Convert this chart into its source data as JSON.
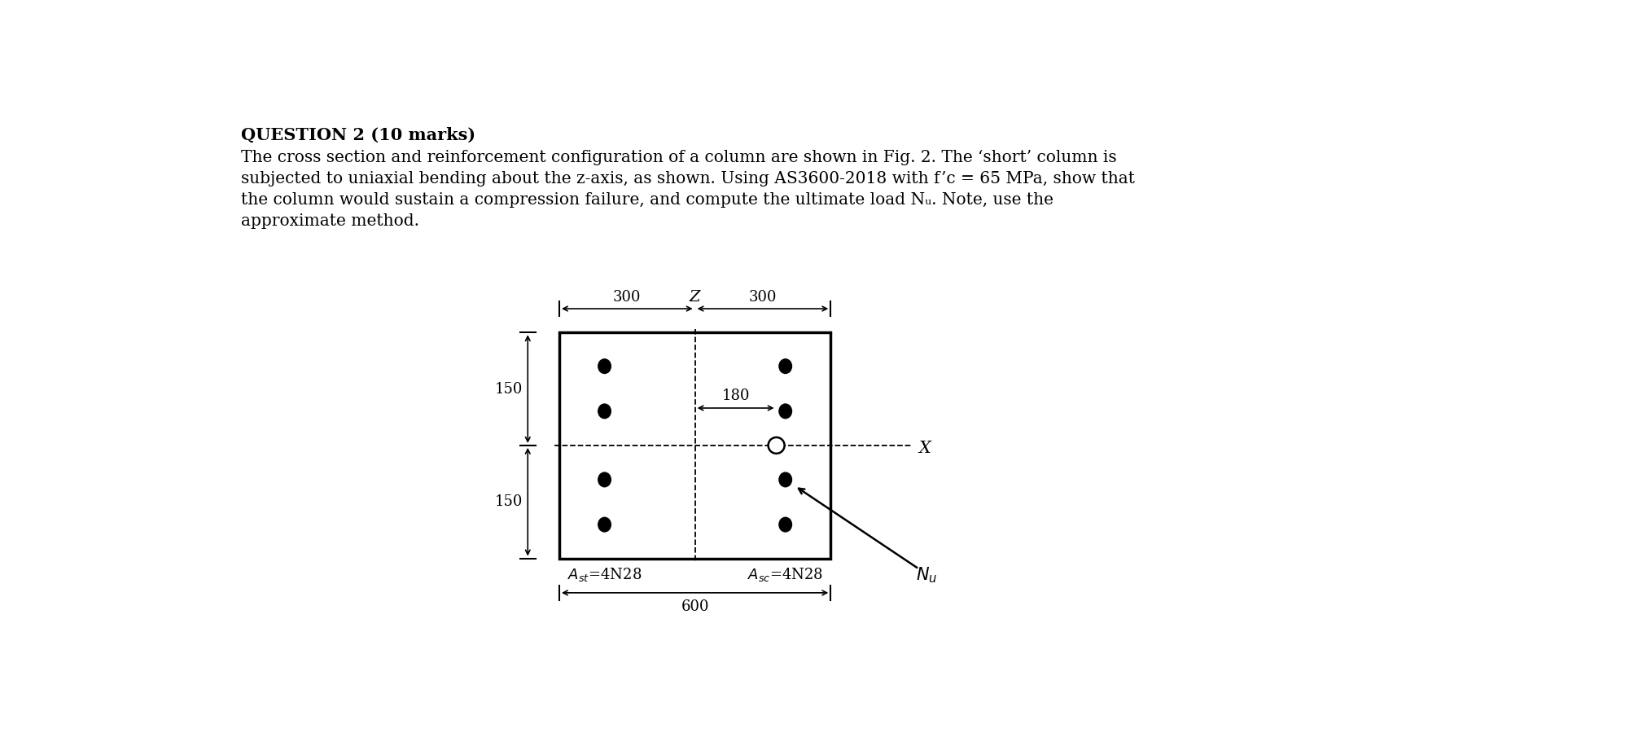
{
  "title_bold": "QUESTION 2 (10 marks)",
  "line1": "The cross section and reinforcement configuration of a column are shown in Fig. 2. The ‘short’ column is",
  "line2": "subjected to uniaxial bending about the z-axis, as shown. Using AS3600-2018 with f’c = 65 MPa, show that",
  "line3": "the column would sustain a compression failure, and compute the ultimate load Nᵤ. Note, use the",
  "line4": "approximate method.",
  "background_color": "#ffffff",
  "text_color": "#000000",
  "font_size_title": 15,
  "font_size_body": 14.5,
  "font_size_dim": 13,
  "font_size_label": 13
}
